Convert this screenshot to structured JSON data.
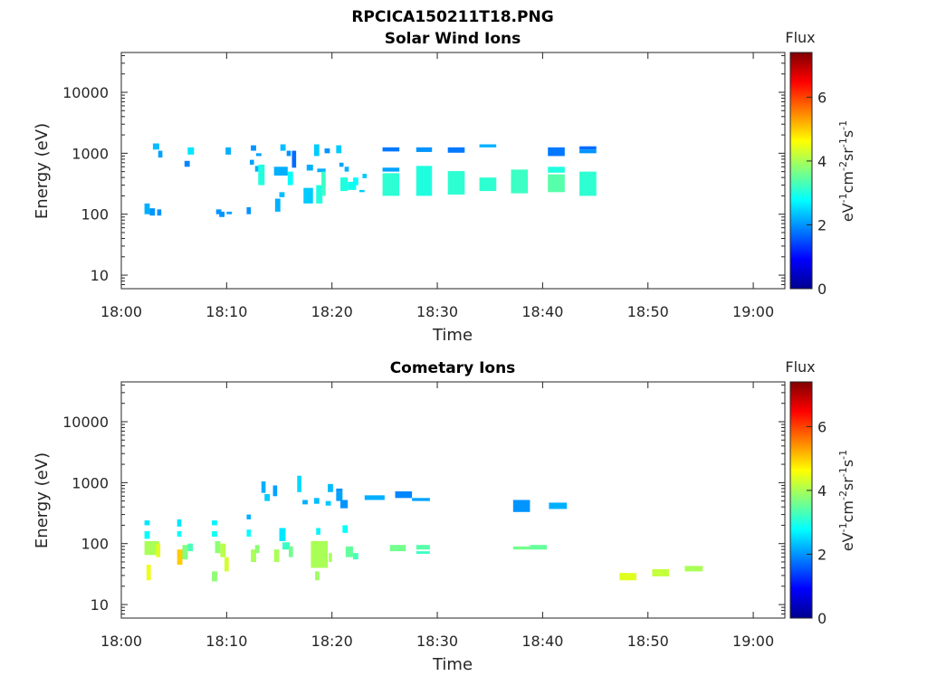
{
  "figure_title": "RPCICA150211T18.PNG",
  "chart_data": [
    {
      "type": "heatmap",
      "title": "Solar Wind Ions",
      "xlabel": "Time",
      "ylabel": "Energy (eV)",
      "x_unit": "minutes after 18:00",
      "xlim": [
        "18:00",
        "19:03"
      ],
      "x_ticks": [
        "18:00",
        "18:10",
        "18:20",
        "18:30",
        "18:40",
        "18:50",
        "19:00"
      ],
      "y_scale": "log",
      "ylim": [
        6,
        45000
      ],
      "y_ticks": [
        "10",
        "100",
        "1000",
        "10000"
      ],
      "colorbar": {
        "title": "Flux",
        "label": "eV-1cm-2sr-1s-1",
        "range": [
          0,
          7.4
        ],
        "ticks": [
          "0",
          "2",
          "4",
          "6"
        ],
        "colormap": "jet"
      },
      "cells": [
        [
          2.2,
          2.7,
          100,
          150,
          2.2
        ],
        [
          2.7,
          3.2,
          95,
          125,
          2.0
        ],
        [
          3.4,
          3.8,
          95,
          120,
          2.0
        ],
        [
          3.0,
          3.6,
          1150,
          1450,
          2.3
        ],
        [
          3.5,
          3.9,
          850,
          1100,
          2.1
        ],
        [
          6.0,
          6.5,
          600,
          750,
          1.9
        ],
        [
          6.3,
          6.9,
          950,
          1250,
          2.6
        ],
        [
          9.0,
          9.5,
          100,
          120,
          2.0
        ],
        [
          9.3,
          9.8,
          90,
          110,
          2.0
        ],
        [
          10.0,
          10.5,
          100,
          110,
          2.1
        ],
        [
          9.9,
          10.4,
          950,
          1250,
          2.2
        ],
        [
          11.9,
          12.3,
          100,
          130,
          2.0
        ],
        [
          12.2,
          12.6,
          650,
          780,
          2.1
        ],
        [
          12.3,
          12.8,
          1100,
          1350,
          2.0
        ],
        [
          12.7,
          13.1,
          500,
          620,
          2.2
        ],
        [
          13.0,
          13.6,
          300,
          650,
          3.0
        ],
        [
          12.8,
          13.3,
          900,
          1000,
          2.1
        ],
        [
          14.6,
          15.1,
          110,
          180,
          2.2
        ],
        [
          15.0,
          15.5,
          190,
          230,
          2.3
        ],
        [
          14.5,
          15.8,
          430,
          600,
          2.2
        ],
        [
          15.1,
          15.6,
          1100,
          1400,
          2.3
        ],
        [
          15.7,
          16.1,
          900,
          1100,
          2.0
        ],
        [
          15.8,
          16.3,
          300,
          500,
          2.8
        ],
        [
          16.2,
          16.6,
          580,
          1100,
          1.7
        ],
        [
          17.3,
          18.2,
          150,
          270,
          2.4
        ],
        [
          18.5,
          19.1,
          150,
          300,
          3.0
        ],
        [
          17.6,
          18.2,
          520,
          650,
          2.2
        ],
        [
          18.6,
          19.4,
          490,
          560,
          2.2
        ],
        [
          18.3,
          18.8,
          900,
          1400,
          2.4
        ],
        [
          19.0,
          19.4,
          200,
          500,
          3.2
        ],
        [
          19.3,
          19.8,
          1000,
          1200,
          2.0
        ],
        [
          20.4,
          20.9,
          1000,
          1350,
          2.4
        ],
        [
          20.8,
          21.5,
          240,
          400,
          3.0
        ],
        [
          21.5,
          22.3,
          250,
          340,
          2.9
        ],
        [
          21.2,
          21.6,
          500,
          600,
          2.2
        ],
        [
          20.7,
          21.1,
          600,
          700,
          2.1
        ],
        [
          22.0,
          22.5,
          300,
          400,
          2.8
        ],
        [
          22.6,
          23.1,
          230,
          250,
          2.4
        ],
        [
          22.9,
          23.3,
          390,
          460,
          2.4
        ],
        [
          24.8,
          26.4,
          1070,
          1250,
          1.8
        ],
        [
          24.8,
          26.4,
          500,
          580,
          2.1
        ],
        [
          24.8,
          26.4,
          200,
          470,
          3.1
        ],
        [
          28.0,
          29.5,
          1050,
          1250,
          2.0
        ],
        [
          28.0,
          29.5,
          200,
          620,
          3.0
        ],
        [
          31.0,
          32.6,
          1020,
          1250,
          1.8
        ],
        [
          31.0,
          32.6,
          210,
          510,
          3.1
        ],
        [
          34.0,
          35.6,
          1250,
          1400,
          2.2
        ],
        [
          34.0,
          35.6,
          240,
          400,
          3.1
        ],
        [
          37.0,
          38.6,
          220,
          540,
          3.2
        ],
        [
          40.5,
          42.1,
          900,
          1250,
          1.8
        ],
        [
          40.5,
          42.1,
          230,
          450,
          3.4
        ],
        [
          40.5,
          42.1,
          480,
          600,
          3.0
        ],
        [
          43.5,
          45.1,
          1150,
          1300,
          1.7
        ],
        [
          43.5,
          45.1,
          1000,
          1150,
          2.0
        ],
        [
          43.5,
          45.1,
          200,
          500,
          3.1
        ]
      ]
    },
    {
      "type": "heatmap",
      "title": "Cometary Ions",
      "xlabel": "Time",
      "ylabel": "Energy (eV)",
      "x_unit": "minutes after 18:00",
      "xlim": [
        "18:00",
        "19:03"
      ],
      "x_ticks": [
        "18:00",
        "18:10",
        "18:20",
        "18:30",
        "18:40",
        "18:50",
        "19:00"
      ],
      "y_scale": "log",
      "ylim": [
        6,
        45000
      ],
      "y_ticks": [
        "10",
        "100",
        "1000",
        "10000"
      ],
      "colorbar": {
        "title": "Flux",
        "label": "eV-1cm-2sr-1s-1",
        "range": [
          0,
          7.4
        ],
        "ticks": [
          "0",
          "2",
          "4",
          "6"
        ],
        "colormap": "jet"
      },
      "cells": [
        [
          2.2,
          2.7,
          200,
          240,
          2.6
        ],
        [
          2.2,
          2.7,
          120,
          160,
          2.8
        ],
        [
          2.2,
          3.6,
          65,
          110,
          4.0
        ],
        [
          2.4,
          2.8,
          25,
          45,
          4.5
        ],
        [
          3.3,
          3.7,
          60,
          100,
          4.4
        ],
        [
          5.3,
          5.7,
          190,
          250,
          2.6
        ],
        [
          5.3,
          5.7,
          130,
          160,
          2.8
        ],
        [
          5.3,
          5.8,
          45,
          80,
          5.0
        ],
        [
          5.8,
          6.3,
          55,
          95,
          3.7
        ],
        [
          6.3,
          6.8,
          75,
          100,
          3.3
        ],
        [
          8.6,
          9.1,
          200,
          240,
          2.7
        ],
        [
          8.6,
          9.1,
          130,
          160,
          2.9
        ],
        [
          8.6,
          9.1,
          24,
          35,
          3.8
        ],
        [
          8.9,
          9.4,
          70,
          110,
          3.8
        ],
        [
          9.4,
          9.9,
          60,
          100,
          4.1
        ],
        [
          9.8,
          10.2,
          35,
          60,
          4.3
        ],
        [
          11.9,
          12.3,
          250,
          300,
          2.2
        ],
        [
          11.9,
          12.3,
          130,
          170,
          2.8
        ],
        [
          12.3,
          12.8,
          50,
          80,
          4.0
        ],
        [
          12.7,
          13.1,
          70,
          95,
          3.8
        ],
        [
          13.3,
          13.7,
          680,
          1050,
          2.2
        ],
        [
          13.6,
          14.1,
          500,
          650,
          2.4
        ],
        [
          14.4,
          14.8,
          600,
          900,
          2.1
        ],
        [
          14.5,
          15.0,
          50,
          80,
          4.0
        ],
        [
          15.0,
          15.6,
          110,
          180,
          2.6
        ],
        [
          15.3,
          16.0,
          80,
          105,
          3.2
        ],
        [
          15.9,
          16.3,
          60,
          90,
          3.6
        ],
        [
          16.7,
          17.1,
          700,
          1300,
          2.5
        ],
        [
          17.2,
          17.7,
          440,
          520,
          2.2
        ],
        [
          18.3,
          18.8,
          450,
          560,
          2.3
        ],
        [
          18.5,
          18.9,
          140,
          180,
          2.7
        ],
        [
          18.0,
          19.6,
          40,
          110,
          4.0
        ],
        [
          18.4,
          18.8,
          25,
          35,
          3.9
        ],
        [
          19.4,
          19.9,
          420,
          500,
          2.4
        ],
        [
          19.6,
          20.1,
          700,
          950,
          2.3
        ],
        [
          19.7,
          20.0,
          50,
          70,
          4.0
        ],
        [
          20.4,
          21.0,
          500,
          700,
          2.1
        ],
        [
          20.4,
          21.0,
          700,
          800,
          2.0
        ],
        [
          20.8,
          21.5,
          380,
          520,
          2.0
        ],
        [
          21.0,
          21.5,
          150,
          200,
          2.8
        ],
        [
          21.3,
          22.0,
          60,
          90,
          3.5
        ],
        [
          22.0,
          22.5,
          55,
          70,
          3.3
        ],
        [
          23.1,
          25.0,
          520,
          620,
          2.2
        ],
        [
          25.5,
          27.0,
          75,
          95,
          3.6
        ],
        [
          26.0,
          27.6,
          560,
          720,
          1.9
        ],
        [
          27.6,
          29.3,
          500,
          560,
          2.1
        ],
        [
          28.0,
          29.3,
          80,
          95,
          3.4
        ],
        [
          28.0,
          29.3,
          68,
          75,
          3.2
        ],
        [
          37.2,
          38.8,
          330,
          520,
          2.0
        ],
        [
          37.2,
          38.8,
          80,
          90,
          3.6
        ],
        [
          38.8,
          40.4,
          80,
          95,
          3.5
        ],
        [
          40.6,
          42.3,
          370,
          470,
          2.2
        ],
        [
          47.3,
          48.9,
          25,
          33,
          4.4
        ],
        [
          50.4,
          52.0,
          29,
          38,
          4.2
        ],
        [
          53.5,
          55.2,
          35,
          43,
          4.0
        ]
      ]
    }
  ]
}
